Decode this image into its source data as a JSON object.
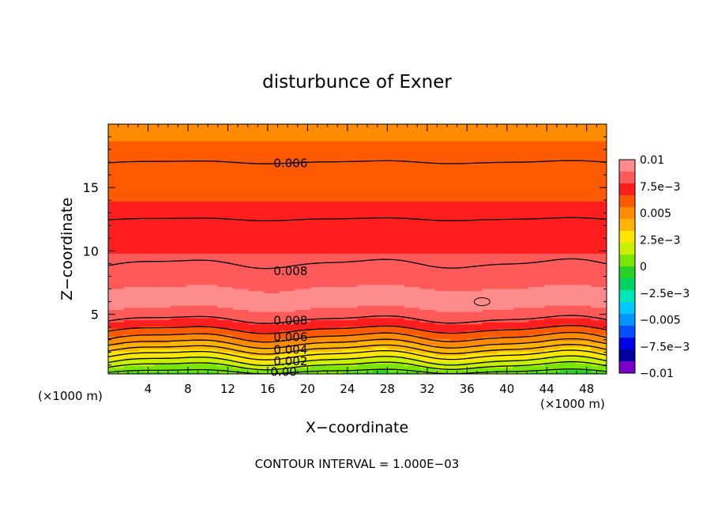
{
  "chart_data": {
    "type": "contour",
    "title": "disturbunce of Exner",
    "xlabel": "X−coordinate",
    "ylabel": "Z−coordinate",
    "x_units_left": "(×1000 m)",
    "x_units_right": "(×1000 m)",
    "xlim": [
      0,
      50
    ],
    "ylim": [
      0.3,
      20
    ],
    "x_ticks": [
      "4",
      "8",
      "12",
      "16",
      "20",
      "24",
      "28",
      "32",
      "36",
      "40",
      "44",
      "48"
    ],
    "x_tick_values": [
      4,
      8,
      12,
      16,
      20,
      24,
      28,
      32,
      36,
      40,
      44,
      48
    ],
    "y_ticks": [
      "5",
      "10",
      "15"
    ],
    "y_tick_values": [
      5,
      10,
      15
    ],
    "footer": "CONTOUR INTERVAL = 1.000E−03",
    "colorbar": {
      "range": [
        -0.01,
        0.01
      ],
      "tick_labels": [
        "0.01",
        "7.5e−3",
        "0.005",
        "2.5e−3",
        "0",
        "−2.5e−3",
        "−0.005",
        "−7.5e−3",
        "−0.01"
      ],
      "tick_values": [
        0.01,
        0.0075,
        0.005,
        0.0025,
        0,
        -0.0025,
        -0.005,
        -0.0075,
        -0.01
      ],
      "colors_top_to_bottom": [
        "#ff8c8c",
        "#ff5a5a",
        "#ff1e1e",
        "#ff5a00",
        "#ff8c00",
        "#ffb400",
        "#ffe600",
        "#c8f000",
        "#78e600",
        "#28d228",
        "#00d264",
        "#00e6b4",
        "#00c8ff",
        "#0096ff",
        "#0050ff",
        "#0000e6",
        "#0000a0",
        "#7800c8"
      ]
    },
    "contour_labels": [
      {
        "text": "0.006",
        "x": 18.3,
        "z": 16.9
      },
      {
        "text": "0.008",
        "x": 18.3,
        "z": 8.4
      },
      {
        "text": "0.008",
        "x": 18.3,
        "z": 4.5
      },
      {
        "text": "0.006",
        "x": 18.3,
        "z": 3.2
      },
      {
        "text": "0.004",
        "x": 18.3,
        "z": 2.2
      },
      {
        "text": "0.002",
        "x": 18.3,
        "z": 1.3
      },
      {
        "text": "0.00",
        "x": 17.6,
        "z": 0.45
      }
    ],
    "contour_levels": [
      {
        "level": 0.0,
        "z": 0.5,
        "amp": 0.15
      },
      {
        "level": 0.001,
        "z": 0.95,
        "amp": 0.25
      },
      {
        "level": 0.002,
        "z": 1.35,
        "amp": 0.3
      },
      {
        "level": 0.003,
        "z": 1.8,
        "amp": 0.3
      },
      {
        "level": 0.004,
        "z": 2.25,
        "amp": 0.3
      },
      {
        "level": 0.005,
        "z": 2.7,
        "amp": 0.3
      },
      {
        "level": 0.006,
        "z": 3.2,
        "amp": 0.3
      },
      {
        "level": 0.007,
        "z": 3.8,
        "amp": 0.25
      },
      {
        "level": 0.008,
        "z": 4.6,
        "amp": 0.25
      },
      {
        "level": 0.008,
        "z": 9.0,
        "amp": 0.3
      },
      {
        "level": 0.007,
        "z": 12.5,
        "amp": 0.1
      },
      {
        "level": 0.006,
        "z": 17.0,
        "amp": 0.1
      }
    ],
    "field_profile": [
      {
        "z": 0.3,
        "v": 0.0
      },
      {
        "z": 4.6,
        "v": 0.008
      },
      {
        "z": 6.0,
        "v": 0.0094
      },
      {
        "z": 9.0,
        "v": 0.008
      },
      {
        "z": 12.5,
        "v": 0.007
      },
      {
        "z": 17.0,
        "v": 0.006
      },
      {
        "z": 20.0,
        "v": 0.0052
      }
    ],
    "local_max": {
      "x": 37.5,
      "z": 6.0
    }
  }
}
